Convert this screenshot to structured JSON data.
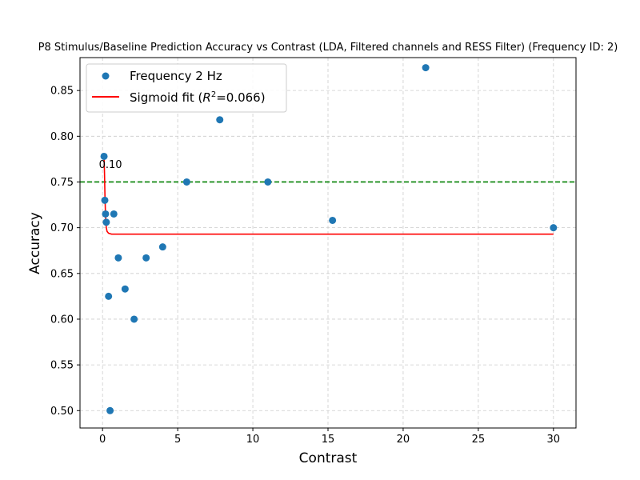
{
  "chart_data": {
    "type": "scatter",
    "title": "P8 Stimulus/Baseline Prediction Accuracy vs Contrast (LDA, Filtered channels and RESS Filter) (Frequency ID: 2)",
    "xlabel": "Contrast",
    "ylabel": "Accuracy",
    "xlim": [
      -1.5,
      31.5
    ],
    "ylim": [
      0.481,
      0.886
    ],
    "xticks": [
      0,
      5,
      10,
      15,
      20,
      25,
      30
    ],
    "yticks": [
      0.5,
      0.55,
      0.6,
      0.65,
      0.7,
      0.75,
      0.8,
      0.85
    ],
    "grid": true,
    "legend_position": "top-left",
    "colors": {
      "points": "#1f77b4",
      "fit": "#ff0000",
      "threshold": "#008000"
    },
    "series": [
      {
        "name": "Frequency 2 Hz",
        "kind": "scatter",
        "points": [
          {
            "x": 0.1,
            "y": 0.778
          },
          {
            "x": 0.15,
            "y": 0.73
          },
          {
            "x": 0.2,
            "y": 0.715
          },
          {
            "x": 0.25,
            "y": 0.706
          },
          {
            "x": 0.4,
            "y": 0.625
          },
          {
            "x": 0.5,
            "y": 0.5
          },
          {
            "x": 0.75,
            "y": 0.715
          },
          {
            "x": 1.05,
            "y": 0.667
          },
          {
            "x": 1.5,
            "y": 0.633
          },
          {
            "x": 2.1,
            "y": 0.6
          },
          {
            "x": 2.9,
            "y": 0.667
          },
          {
            "x": 4.0,
            "y": 0.679
          },
          {
            "x": 5.6,
            "y": 0.75
          },
          {
            "x": 7.8,
            "y": 0.818
          },
          {
            "x": 11.0,
            "y": 0.75
          },
          {
            "x": 15.3,
            "y": 0.708
          },
          {
            "x": 21.5,
            "y": 0.875
          },
          {
            "x": 30.0,
            "y": 0.7
          }
        ]
      },
      {
        "name": "Sigmoid fit (R²=0.066)",
        "name_prefix": "Sigmoid fit (",
        "name_r": "R",
        "name_sup": "2",
        "name_suffix": "=0.066)",
        "kind": "line",
        "points": [
          {
            "x": 0.1,
            "y": 0.778
          },
          {
            "x": 0.13,
            "y": 0.76
          },
          {
            "x": 0.16,
            "y": 0.735
          },
          {
            "x": 0.2,
            "y": 0.712
          },
          {
            "x": 0.25,
            "y": 0.7
          },
          {
            "x": 0.3,
            "y": 0.696
          },
          {
            "x": 0.4,
            "y": 0.694
          },
          {
            "x": 0.6,
            "y": 0.693
          },
          {
            "x": 1.0,
            "y": 0.693
          },
          {
            "x": 30.0,
            "y": 0.693
          }
        ]
      }
    ],
    "threshold_line": {
      "y": 0.75,
      "style": "dashed"
    },
    "annotation": {
      "text": "0.10",
      "x": 0.1,
      "y": 0.76
    }
  }
}
